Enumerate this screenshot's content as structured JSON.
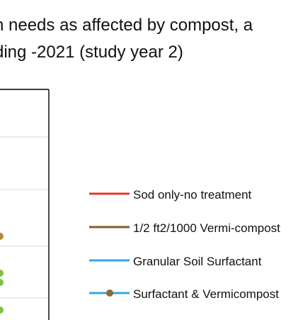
{
  "title": {
    "line1": "n needs as affected by compost, a",
    "line2": "ding -2021 (study year 2)"
  },
  "chart_data": {
    "type": "line",
    "title": "n needs as affected by compost, a ding -2021 (study year 2)",
    "grid": true,
    "legend_position": "right",
    "series": [
      {
        "name": "Sod only-no treatment",
        "color": "#e03a2e",
        "marker": "none"
      },
      {
        "name": "1/2 ft2/1000 Vermi-compost",
        "color": "#8a5a2b",
        "marker": "none"
      },
      {
        "name": "Granular Soil Surfactant",
        "color": "#35a8e0",
        "marker": "none"
      },
      {
        "name": "Surfactant & Vermicompost",
        "color": "#35a8e0",
        "marker": "circle",
        "marker_color": "#8a6a35"
      }
    ],
    "visible_marker_colors": {
      "brown": "#b38a3a",
      "green": "#7cc242"
    }
  }
}
